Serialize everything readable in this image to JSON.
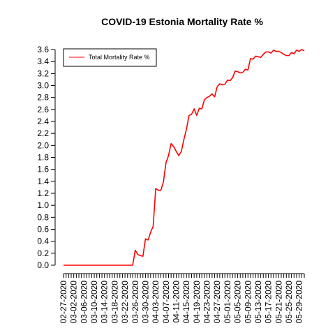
{
  "chart_data": {
    "type": "line",
    "title": "COVID-19 Estonia Mortality Rate %",
    "xlabel": "",
    "ylabel": "",
    "ylim": [
      0,
      3.6
    ],
    "yticks": [
      "0.0",
      "0.2",
      "0.4",
      "0.6",
      "0.8",
      "1.0",
      "1.2",
      "1.4",
      "1.6",
      "1.8",
      "2.0",
      "2.2",
      "2.4",
      "2.6",
      "2.8",
      "3.0",
      "3.2",
      "3.4",
      "3.6"
    ],
    "xtick_labels": [
      "02-27-2020",
      "03-02-2020",
      "03-06-2020",
      "03-10-2020",
      "03-14-2020",
      "03-18-2020",
      "03-22-2020",
      "03-26-2020",
      "03-30-2020",
      "04-03-2020",
      "04-07-2020",
      "04-11-2020",
      "04-15-2020",
      "04-19-2020",
      "04-23-2020",
      "04-27-2020",
      "05-01-2020",
      "05-05-2020",
      "05-09-2020",
      "05-13-2020",
      "05-17-2020",
      "05-21-2020",
      "05-25-2020",
      "05-29-2020"
    ],
    "x_start": "02-27-2020",
    "x_end": "05-31-2020",
    "grid": false,
    "legend_position": "top-left",
    "series": [
      {
        "name": "Total Mortality Rate %",
        "color": "#ff0000",
        "x": [
          "02-27-2020",
          "03-25-2020",
          "03-26-2020",
          "03-27-2020",
          "03-28-2020",
          "03-29-2020",
          "03-30-2020",
          "03-31-2020",
          "04-01-2020",
          "04-02-2020",
          "04-03-2020",
          "04-04-2020",
          "04-05-2020",
          "04-06-2020",
          "04-07-2020",
          "04-08-2020",
          "04-09-2020",
          "04-10-2020",
          "04-11-2020",
          "04-12-2020",
          "04-13-2020",
          "04-14-2020",
          "04-15-2020",
          "04-16-2020",
          "04-17-2020",
          "04-18-2020",
          "04-19-2020",
          "04-20-2020",
          "04-21-2020",
          "04-22-2020",
          "04-23-2020",
          "04-24-2020",
          "04-25-2020",
          "04-26-2020",
          "04-27-2020",
          "04-28-2020",
          "04-29-2020",
          "04-30-2020",
          "05-01-2020",
          "05-02-2020",
          "05-03-2020",
          "05-04-2020",
          "05-05-2020",
          "05-06-2020",
          "05-07-2020",
          "05-08-2020",
          "05-09-2020",
          "05-10-2020",
          "05-11-2020",
          "05-12-2020",
          "05-13-2020",
          "05-14-2020",
          "05-15-2020",
          "05-16-2020",
          "05-17-2020",
          "05-18-2020",
          "05-19-2020",
          "05-20-2020",
          "05-21-2020",
          "05-22-2020",
          "05-23-2020",
          "05-24-2020",
          "05-25-2020",
          "05-26-2020",
          "05-27-2020",
          "05-28-2020",
          "05-29-2020",
          "05-30-2020",
          "05-31-2020"
        ],
        "values": [
          0.0,
          0.0,
          0.25,
          0.18,
          0.16,
          0.15,
          0.44,
          0.42,
          0.55,
          0.65,
          1.28,
          1.25,
          1.25,
          1.39,
          1.71,
          1.83,
          2.03,
          1.98,
          1.9,
          1.83,
          1.9,
          2.1,
          2.27,
          2.5,
          2.52,
          2.61,
          2.5,
          2.62,
          2.61,
          2.76,
          2.8,
          2.82,
          2.86,
          2.81,
          2.98,
          3.03,
          3.01,
          3.02,
          3.09,
          3.08,
          3.13,
          3.24,
          3.23,
          3.21,
          3.22,
          3.27,
          3.26,
          3.45,
          3.44,
          3.49,
          3.48,
          3.47,
          3.52,
          3.56,
          3.56,
          3.54,
          3.59,
          3.57,
          3.57,
          3.55,
          3.52,
          3.5,
          3.5,
          3.55,
          3.53,
          3.59,
          3.57,
          3.6,
          3.58
        ]
      }
    ]
  }
}
